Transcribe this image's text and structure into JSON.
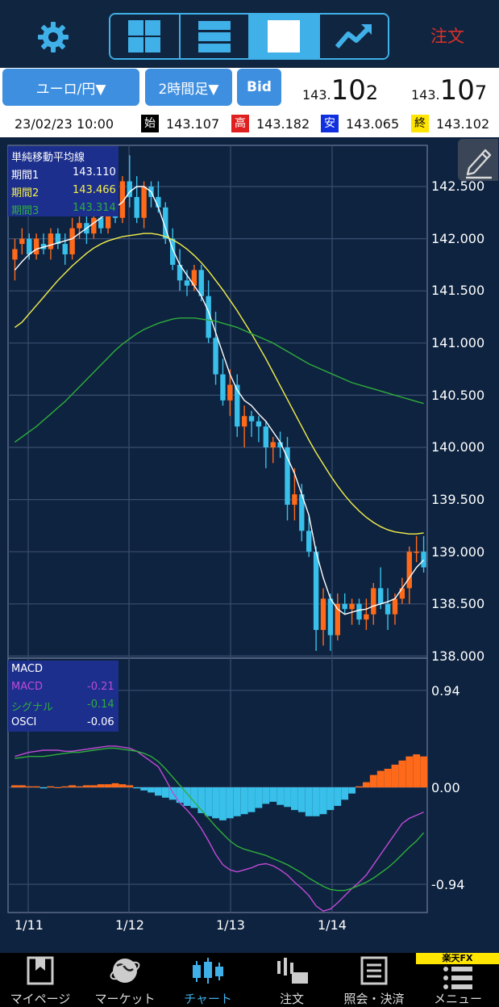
{
  "toolbar": {
    "order_label": "注文"
  },
  "selectors": {
    "pair": "ユーロ/円▼",
    "timeframe": "2時間足▼",
    "side": "Bid"
  },
  "quotes": {
    "bid": {
      "prefix": "143.",
      "mid": "10",
      "tail": "2"
    },
    "ask": {
      "prefix": "143.",
      "mid": "10",
      "tail": "7"
    }
  },
  "ohlc": {
    "datetime": "23/02/23 10:00",
    "open_tag": "始",
    "open": "143.107",
    "high_tag": "高",
    "high": "143.182",
    "low_tag": "安",
    "low": "143.065",
    "close_tag": "終",
    "close": "143.102"
  },
  "sma_legend": {
    "title": "単純移動平均線",
    "p1_label": "期間1",
    "p1_value": "143.110",
    "p2_label": "期間2",
    "p2_value": "143.466",
    "p3_label": "期間3",
    "p3_value": "143.314"
  },
  "macd_legend": {
    "title": "MACD",
    "macd_label": "MACD",
    "macd_value": "-0.21",
    "signal_label": "シグナル",
    "signal_value": "-0.14",
    "osci_label": "OSCI",
    "osci_value": "-0.06"
  },
  "price_axis": [
    "142.500",
    "142.000",
    "141.500",
    "141.000",
    "140.500",
    "140.000",
    "139.500",
    "139.000",
    "138.500",
    "138.000"
  ],
  "macd_axis": [
    "0.94",
    "0.00",
    "-0.94"
  ],
  "dates": [
    "1/11",
    "1/12",
    "1/13",
    "1/14"
  ],
  "nav": [
    {
      "label": "マイページ"
    },
    {
      "label": "マーケット"
    },
    {
      "label": "チャート"
    },
    {
      "label": "注文"
    },
    {
      "label": "照会・決済"
    },
    {
      "label": "メニュー"
    }
  ],
  "brand": "楽天FX",
  "colors": {
    "up": "#ff6a1a",
    "down": "#38c0ea",
    "sma1": "#ffffff",
    "sma2": "#f5f04a",
    "sma3": "#2fae3a",
    "macd": "#c04ad6",
    "signal": "#2fae3a",
    "accent": "#3fb0e8"
  },
  "chart_data": [
    {
      "type": "candlestick",
      "title": "",
      "x": [
        "1/11",
        "1/12",
        "1/13",
        "1/14"
      ],
      "ylim": [
        138.0,
        142.8
      ],
      "candles": [
        [
          141.8,
          142.0,
          141.6,
          141.9
        ],
        [
          141.95,
          142.1,
          141.85,
          142.0
        ],
        [
          142.0,
          142.05,
          141.8,
          141.85
        ],
        [
          141.85,
          142.05,
          141.8,
          142.0
        ],
        [
          141.95,
          142.05,
          141.85,
          141.9
        ],
        [
          141.9,
          142.1,
          141.8,
          142.05
        ],
        [
          142.05,
          142.1,
          141.9,
          141.95
        ],
        [
          141.95,
          142.05,
          141.75,
          141.85
        ],
        [
          141.85,
          142.2,
          141.8,
          142.1
        ],
        [
          142.1,
          142.25,
          142.0,
          142.15
        ],
        [
          142.15,
          142.25,
          141.95,
          142.05
        ],
        [
          142.05,
          142.3,
          142.0,
          142.2
        ],
        [
          142.2,
          142.3,
          142.05,
          142.1
        ],
        [
          142.1,
          142.4,
          142.05,
          142.35
        ],
        [
          142.35,
          142.45,
          142.15,
          142.2
        ],
        [
          142.2,
          142.6,
          142.15,
          142.55
        ],
        [
          142.55,
          142.8,
          142.3,
          142.4
        ],
        [
          142.4,
          142.6,
          142.15,
          142.2
        ],
        [
          142.2,
          142.55,
          142.1,
          142.5
        ],
        [
          142.5,
          142.55,
          142.3,
          142.4
        ],
        [
          142.4,
          142.55,
          142.25,
          142.3
        ],
        [
          142.3,
          142.35,
          141.95,
          142.0
        ],
        [
          142.0,
          142.1,
          141.7,
          141.75
        ],
        [
          141.75,
          141.9,
          141.5,
          141.6
        ],
        [
          141.6,
          141.7,
          141.45,
          141.55
        ],
        [
          141.55,
          141.75,
          141.5,
          141.7
        ],
        [
          141.7,
          141.75,
          141.4,
          141.45
        ],
        [
          141.45,
          141.6,
          141.0,
          141.05
        ],
        [
          141.05,
          141.3,
          140.6,
          140.7
        ],
        [
          140.7,
          140.85,
          140.4,
          140.45
        ],
        [
          140.45,
          140.75,
          140.3,
          140.6
        ],
        [
          140.6,
          140.7,
          140.1,
          140.2
        ],
        [
          140.2,
          140.4,
          140.0,
          140.3
        ],
        [
          140.3,
          140.35,
          140.1,
          140.25
        ],
        [
          140.25,
          140.3,
          140.05,
          140.2
        ],
        [
          140.2,
          140.25,
          139.8,
          140.0
        ],
        [
          140.0,
          140.1,
          139.85,
          140.05
        ],
        [
          140.05,
          140.15,
          139.9,
          140.0
        ],
        [
          140.0,
          140.1,
          139.3,
          139.45
        ],
        [
          139.45,
          139.8,
          139.3,
          139.55
        ],
        [
          139.55,
          139.65,
          139.1,
          139.2
        ],
        [
          139.2,
          139.35,
          138.95,
          139.0
        ],
        [
          139.0,
          139.05,
          138.05,
          138.25
        ],
        [
          138.25,
          138.65,
          138.1,
          138.55
        ],
        [
          138.55,
          138.6,
          138.05,
          138.2
        ],
        [
          138.2,
          138.6,
          138.15,
          138.5
        ],
        [
          138.5,
          138.6,
          138.4,
          138.45
        ],
        [
          138.45,
          138.55,
          138.3,
          138.5
        ],
        [
          138.5,
          138.55,
          138.3,
          138.35
        ],
        [
          138.35,
          138.55,
          138.25,
          138.4
        ],
        [
          138.4,
          138.7,
          138.3,
          138.65
        ],
        [
          138.65,
          138.85,
          138.45,
          138.5
        ],
        [
          138.5,
          138.65,
          138.25,
          138.4
        ],
        [
          138.4,
          138.6,
          138.3,
          138.55
        ],
        [
          138.55,
          138.75,
          138.5,
          138.65
        ],
        [
          138.65,
          139.05,
          138.5,
          139.0
        ],
        [
          139.0,
          139.15,
          138.9,
          139.0
        ],
        [
          139.0,
          139.15,
          138.8,
          138.85
        ]
      ],
      "sma": [
        {
          "name": "期間1",
          "values": [
            141.7,
            141.78,
            141.85,
            141.9,
            141.92,
            141.94,
            141.96,
            141.98,
            142.0,
            142.05,
            142.1,
            142.15,
            142.2,
            142.25,
            142.3,
            142.35,
            142.45,
            142.5,
            142.5,
            142.45,
            142.3,
            142.1,
            141.9,
            141.75,
            141.65,
            141.55,
            141.45,
            141.3,
            141.1,
            140.9,
            140.7,
            140.55,
            140.45,
            140.4,
            140.32,
            140.25,
            140.15,
            140.05,
            139.9,
            139.75,
            139.55,
            139.35,
            139.0,
            138.75,
            138.55,
            138.45,
            138.4,
            138.42,
            138.44,
            138.45,
            138.48,
            138.5,
            138.52,
            138.55,
            138.65,
            138.75,
            138.85,
            138.92
          ]
        },
        {
          "name": "期間2",
          "values": [
            141.15,
            141.2,
            141.28,
            141.36,
            141.44,
            141.52,
            141.6,
            141.67,
            141.74,
            141.8,
            141.86,
            141.91,
            141.95,
            141.98,
            142.0,
            142.02,
            142.03,
            142.04,
            142.05,
            142.05,
            142.04,
            142.02,
            141.99,
            141.95,
            141.9,
            141.84,
            141.77,
            141.69,
            141.6,
            141.51,
            141.41,
            141.31,
            141.2,
            141.09,
            140.97,
            140.85,
            140.72,
            140.59,
            140.46,
            140.33,
            140.2,
            140.07,
            139.95,
            139.84,
            139.73,
            139.63,
            139.54,
            139.46,
            139.39,
            139.33,
            139.28,
            139.24,
            139.21,
            139.19,
            139.18,
            139.17,
            139.17,
            139.18
          ]
        },
        {
          "name": "期間3",
          "values": [
            140.05,
            140.1,
            140.15,
            140.2,
            140.26,
            140.32,
            140.38,
            140.44,
            140.51,
            140.58,
            140.65,
            140.72,
            140.79,
            140.86,
            140.93,
            140.99,
            141.04,
            141.09,
            141.13,
            141.16,
            141.19,
            141.21,
            141.23,
            141.24,
            141.24,
            141.24,
            141.23,
            141.22,
            141.21,
            141.19,
            141.17,
            141.15,
            141.12,
            141.09,
            141.06,
            141.03,
            141.0,
            140.96,
            140.92,
            140.88,
            140.84,
            140.8,
            140.77,
            140.74,
            140.71,
            140.68,
            140.65,
            140.62,
            140.6,
            140.58,
            140.56,
            140.54,
            140.52,
            140.5,
            140.48,
            140.46,
            140.44,
            140.42
          ]
        }
      ]
    },
    {
      "type": "macd",
      "title": "MACD",
      "ylim": [
        -1.2,
        1.0
      ],
      "ticks": [
        0.94,
        0.0,
        -0.94
      ],
      "macd": [
        0.3,
        0.32,
        0.34,
        0.35,
        0.36,
        0.36,
        0.36,
        0.35,
        0.35,
        0.36,
        0.37,
        0.38,
        0.39,
        0.4,
        0.4,
        0.39,
        0.38,
        0.35,
        0.3,
        0.25,
        0.2,
        0.08,
        -0.05,
        -0.15,
        -0.22,
        -0.3,
        -0.4,
        -0.52,
        -0.65,
        -0.75,
        -0.8,
        -0.82,
        -0.8,
        -0.78,
        -0.75,
        -0.74,
        -0.76,
        -0.8,
        -0.85,
        -0.92,
        -0.98,
        -1.05,
        -1.15,
        -1.2,
        -1.18,
        -1.12,
        -1.05,
        -0.98,
        -0.92,
        -0.85,
        -0.75,
        -0.65,
        -0.55,
        -0.45,
        -0.35,
        -0.3,
        -0.27,
        -0.24
      ]
    },
    {
      "type": "macd-signal",
      "title": "",
      "signal": [
        0.28,
        0.29,
        0.3,
        0.3,
        0.3,
        0.31,
        0.32,
        0.33,
        0.34,
        0.34,
        0.35,
        0.36,
        0.37,
        0.38,
        0.38,
        0.37,
        0.36,
        0.35,
        0.33,
        0.3,
        0.25,
        0.18,
        0.1,
        0.02,
        -0.06,
        -0.14,
        -0.22,
        -0.3,
        -0.38,
        -0.45,
        -0.52,
        -0.57,
        -0.6,
        -0.62,
        -0.64,
        -0.66,
        -0.69,
        -0.72,
        -0.75,
        -0.79,
        -0.83,
        -0.88,
        -0.92,
        -0.96,
        -0.99,
        -1.0,
        -1.0,
        -0.98,
        -0.95,
        -0.92,
        -0.88,
        -0.83,
        -0.78,
        -0.72,
        -0.65,
        -0.58,
        -0.52,
        -0.44
      ],
      "osci": [
        0.02,
        0.02,
        0.01,
        0.01,
        -0.01,
        0.01,
        0.0,
        0.01,
        0.02,
        0.01,
        0.02,
        0.02,
        0.03,
        0.03,
        0.04,
        0.03,
        0.02,
        -0.01,
        -0.03,
        -0.05,
        -0.08,
        -0.1,
        -0.12,
        -0.15,
        -0.18,
        -0.2,
        -0.25,
        -0.28,
        -0.3,
        -0.32,
        -0.3,
        -0.28,
        -0.26,
        -0.24,
        -0.2,
        -0.16,
        -0.14,
        -0.17,
        -0.19,
        -0.22,
        -0.24,
        -0.28,
        -0.28,
        -0.26,
        -0.22,
        -0.18,
        -0.12,
        -0.06,
        0.01,
        0.05,
        0.12,
        0.16,
        0.18,
        0.22,
        0.26,
        0.3,
        0.32,
        0.3
      ]
    }
  ]
}
